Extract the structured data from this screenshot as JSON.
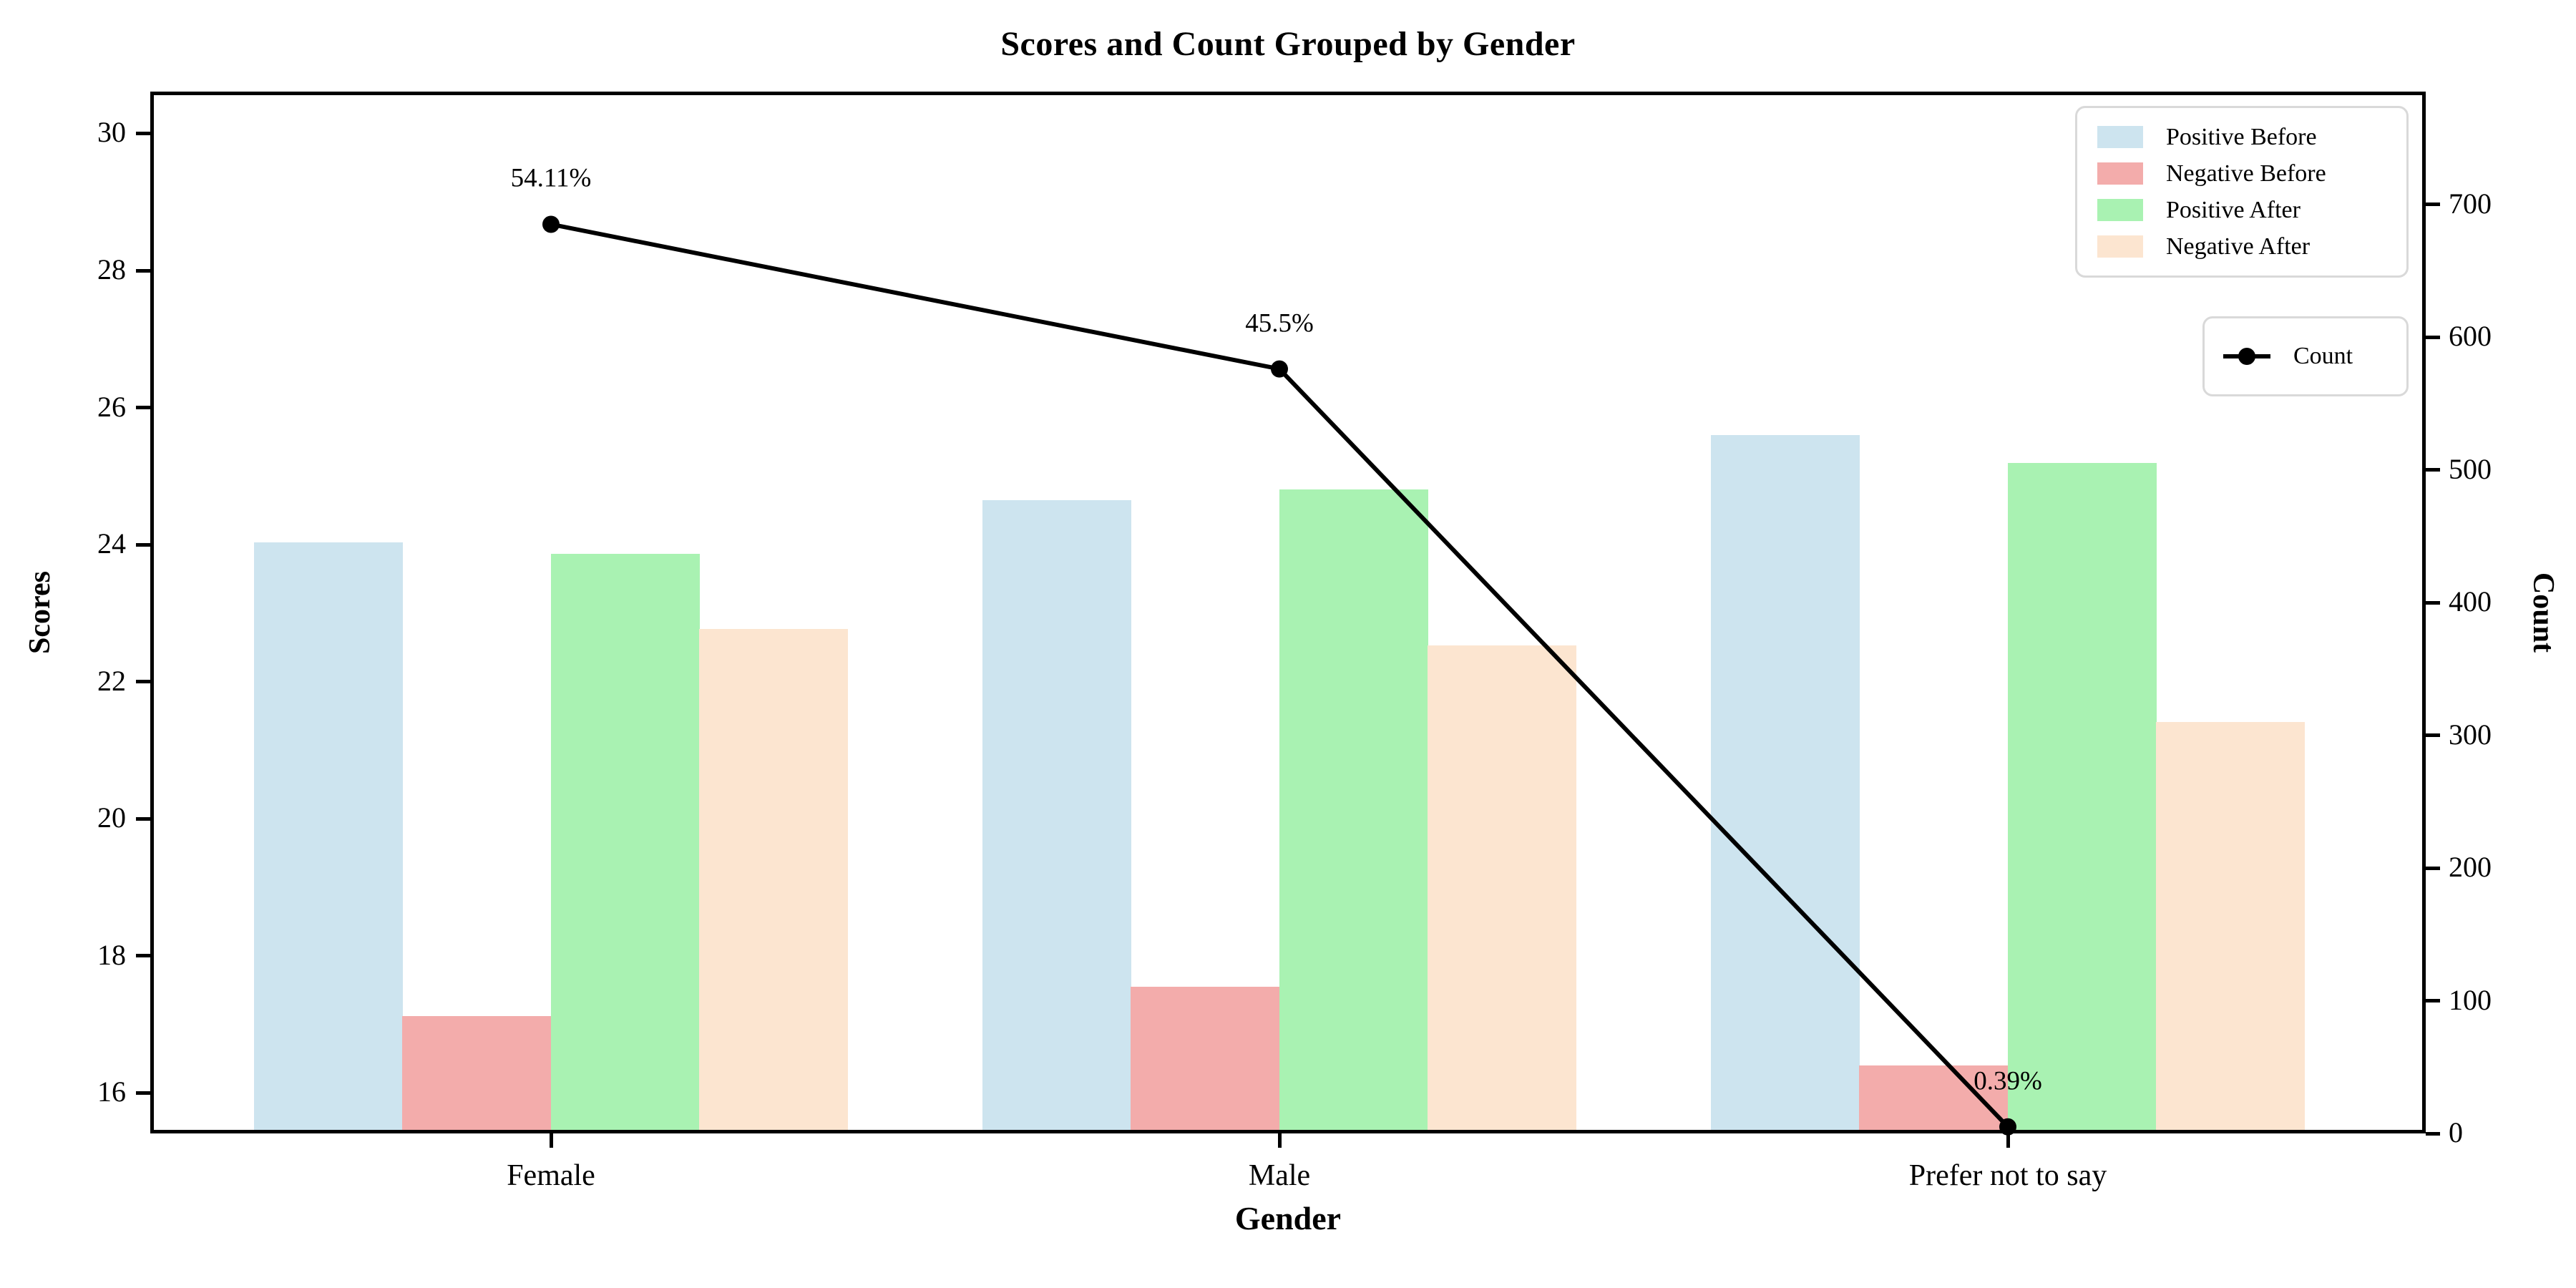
{
  "chart_data": {
    "type": "bar",
    "title": "Scores and Count Grouped by Gender",
    "xlabel": "Gender",
    "ylabel": "Scores",
    "ylabel_right": "Count",
    "categories": [
      "Female",
      "Male",
      "Prefer not to say"
    ],
    "series": [
      {
        "name": "Positive Before",
        "color": "#cde4ef",
        "values": [
          24.03,
          24.65,
          25.6
        ]
      },
      {
        "name": "Negative Before",
        "color": "#f3acab",
        "values": [
          17.12,
          17.55,
          16.4
        ]
      },
      {
        "name": "Positive After",
        "color": "#a9f2b2",
        "values": [
          23.87,
          24.81,
          25.19
        ]
      },
      {
        "name": "Negative After",
        "color": "#fce5d0",
        "values": [
          22.77,
          22.53,
          21.41
        ]
      }
    ],
    "line": {
      "name": "Count",
      "color": "#000000",
      "values": [
        685,
        576,
        5
      ],
      "point_labels": [
        "54.11%",
        "45.5%",
        "0.39%"
      ]
    },
    "axes": {
      "left": {
        "label": "Scores",
        "min": 15.41,
        "max": 30.61,
        "ticks": [
          30,
          28,
          26,
          24,
          22,
          20,
          18,
          16
        ]
      },
      "right": {
        "label": "Count",
        "min": 0,
        "max": 785,
        "ticks": [
          700,
          600,
          500,
          400,
          300,
          200,
          100,
          0
        ]
      },
      "x": {
        "label": "Gender"
      }
    },
    "grid": false,
    "legend": {
      "position": "upper right",
      "bar_entries": [
        "Positive Before",
        "Negative Before",
        "Positive After",
        "Negative After"
      ],
      "line_entry": "Count"
    }
  }
}
